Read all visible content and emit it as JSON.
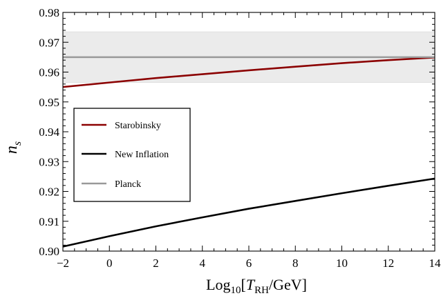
{
  "chart_data": {
    "type": "line",
    "xlabel": {
      "prefix": "Log",
      "sub": "10",
      "open": "[",
      "T": "T",
      "Tsub": "RH",
      "unit": "/GeV]"
    },
    "ylabel": {
      "n": "n",
      "sub": "s"
    },
    "xlim": [
      -2,
      14
    ],
    "ylim": [
      0.9,
      0.98
    ],
    "x_ticks": [
      -2,
      0,
      2,
      4,
      6,
      8,
      10,
      12,
      14
    ],
    "x_tick_labels": [
      "−2",
      "0",
      "2",
      "4",
      "6",
      "8",
      "10",
      "12",
      "14"
    ],
    "y_ticks": [
      0.9,
      0.91,
      0.92,
      0.93,
      0.94,
      0.95,
      0.96,
      0.97,
      0.98
    ],
    "y_tick_labels": [
      "0.90",
      "0.91",
      "0.92",
      "0.93",
      "0.94",
      "0.95",
      "0.96",
      "0.97",
      "0.98"
    ],
    "x_minor_step": 0.5,
    "y_minor_step": 0.002,
    "grid": false,
    "band": {
      "label": "Planck",
      "center": 0.965,
      "low": 0.9565,
      "high": 0.9735,
      "fill": "#ebebeb",
      "line_color": "#999999"
    },
    "series": [
      {
        "name": "Starobinsky",
        "color": "#8b0000",
        "x": [
          -2,
          0,
          2,
          4,
          6,
          8,
          10,
          12,
          14
        ],
        "y": [
          0.955,
          0.9565,
          0.958,
          0.9593,
          0.9606,
          0.9618,
          0.963,
          0.964,
          0.9649
        ]
      },
      {
        "name": "New Inflation",
        "color": "#000000",
        "x": [
          -2,
          0,
          2,
          4,
          6,
          8,
          10,
          12,
          14
        ],
        "y": [
          0.9015,
          0.905,
          0.9083,
          0.9113,
          0.9142,
          0.9168,
          0.9194,
          0.9219,
          0.9243
        ]
      },
      {
        "name": "Planck",
        "color": "#999999",
        "x": [
          -2,
          14
        ],
        "y": [
          0.965,
          0.965
        ]
      }
    ],
    "legend": [
      "Starobinsky",
      "New Inflation",
      "Planck"
    ],
    "legend_position": "center-left"
  }
}
